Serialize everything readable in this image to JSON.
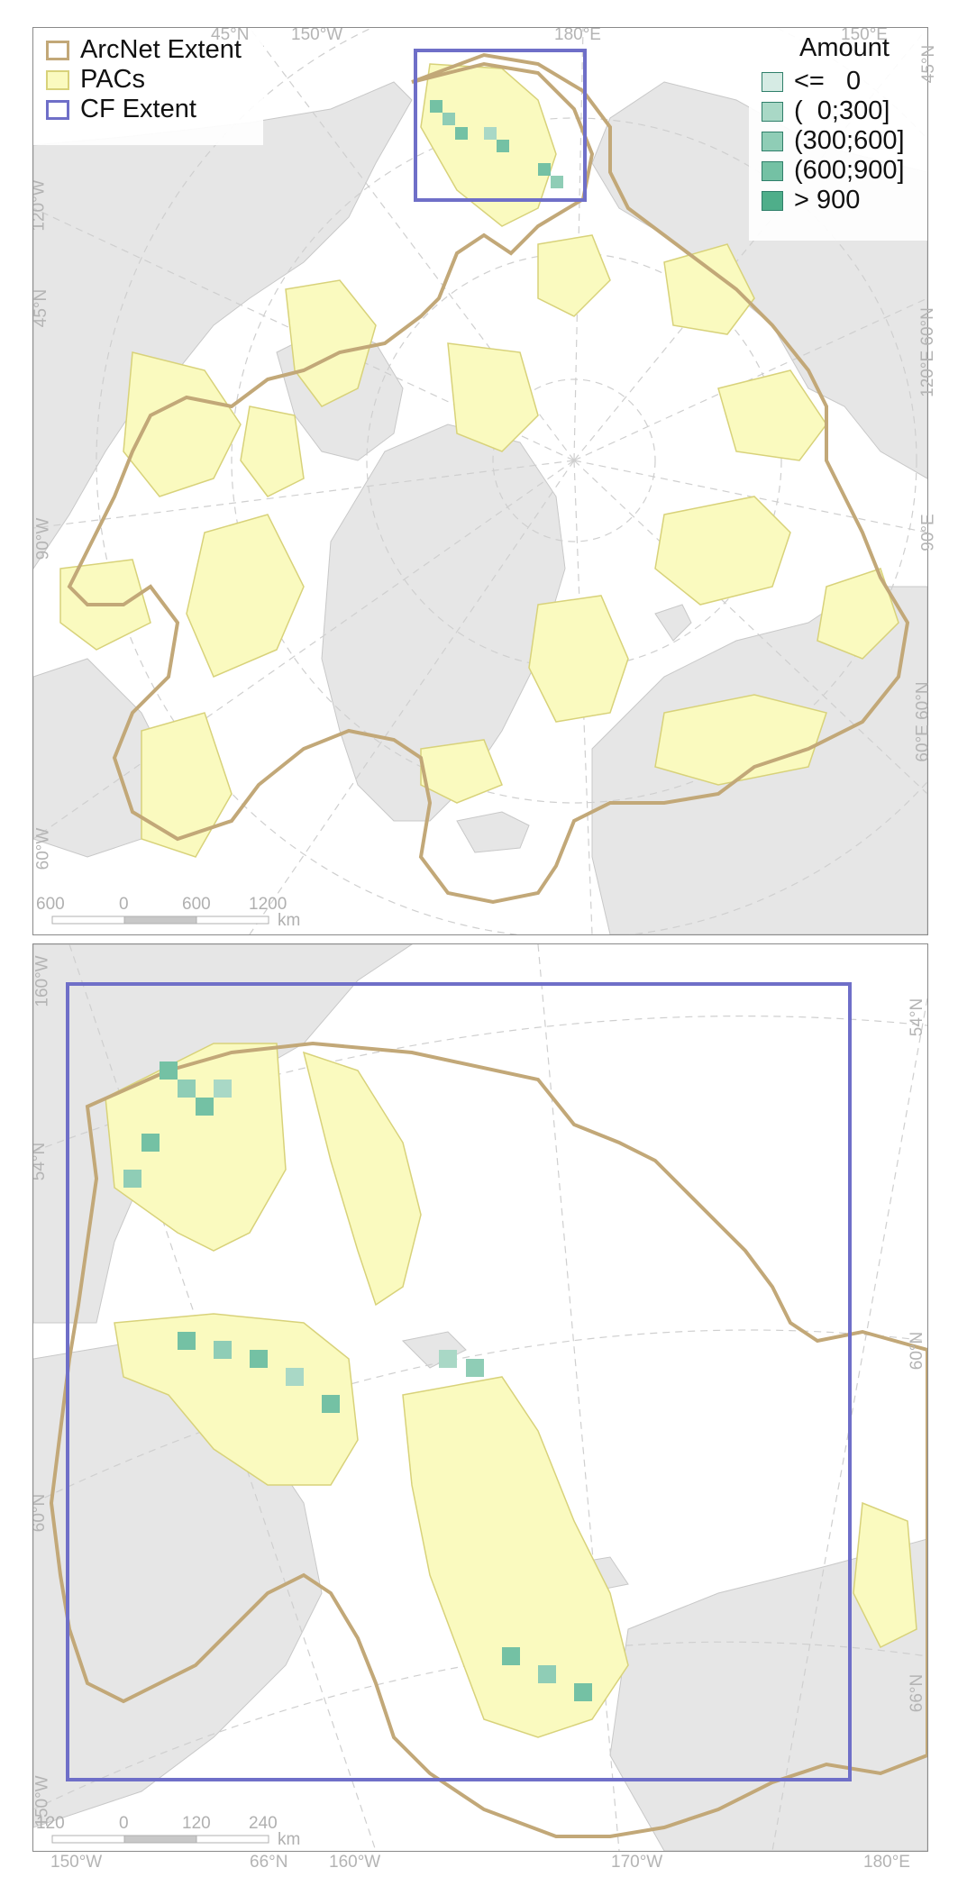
{
  "top_panel": {
    "legend": {
      "arcnet": "ArcNet Extent",
      "pacs": "PACs",
      "cf": "CF Extent"
    },
    "amount_legend": {
      "title": "Amount",
      "items": [
        {
          "label": "<=   0",
          "color": "#d6ebe4"
        },
        {
          "label": "(  0;300]",
          "color": "#a9d8c6"
        },
        {
          "label": "(300;600]",
          "color": "#8fcdb6"
        },
        {
          "label": "(600;900]",
          "color": "#74c1a4"
        },
        {
          "label": "> 900",
          "color": "#4fae8a"
        }
      ]
    },
    "coords": {
      "top_1": "45°N",
      "top_2": "150°W",
      "top_3": "180°E",
      "top_4": "150°E",
      "left_1": "120°W",
      "left_2": "90°W",
      "left_3": "45°N",
      "left_4": "60°W",
      "right_1": "45°N",
      "right_2": "120°E 60°N",
      "right_3": "90°E",
      "right_4": "60°E 60°N"
    },
    "scale": {
      "n1": "600",
      "n2": "0",
      "n3": "600",
      "n4": "1200",
      "unit": "km"
    }
  },
  "bottom_panel": {
    "coords": {
      "left_1": "160°W",
      "left_2": "54°N",
      "left_3": "60°N",
      "left_4": "150°W",
      "right_1": "54°N",
      "right_2": "60°N",
      "right_3": "66°N",
      "bottom_1": "150°W",
      "bottom_2": "66°N",
      "bottom_3": "160°W",
      "bottom_4": "170°W",
      "bottom_5": "180°E"
    },
    "scale": {
      "n1": "120",
      "n2": "0",
      "n3": "120",
      "n4": "240",
      "unit": "km"
    }
  },
  "colors": {
    "arcnet": "#c2a878",
    "pacs_fill": "#fafabf",
    "pacs_stroke": "#d8d27a",
    "cf": "#6f6fc8",
    "land": "#e6e6e6",
    "graticule": "#cfcfcf"
  }
}
